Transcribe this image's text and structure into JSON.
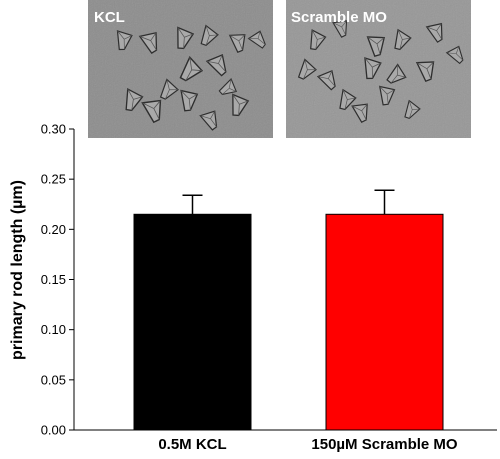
{
  "chart_data": {
    "type": "bar",
    "categories": [
      "0.5M KCL",
      "150µM Scramble MO"
    ],
    "values": [
      0.215,
      0.215
    ],
    "errors": [
      0.019,
      0.024
    ],
    "colors": [
      "#000000",
      "#ff0000"
    ],
    "ylabel": "primary rod length (µm)",
    "xlabel": "",
    "ylim": [
      0,
      0.3
    ],
    "yticks": [
      "0.00",
      "0.05",
      "0.10",
      "0.15",
      "0.20",
      "0.25",
      "0.30"
    ],
    "grid": false
  },
  "insets": [
    {
      "label": "KCL"
    },
    {
      "label": "Scramble MO"
    }
  ]
}
